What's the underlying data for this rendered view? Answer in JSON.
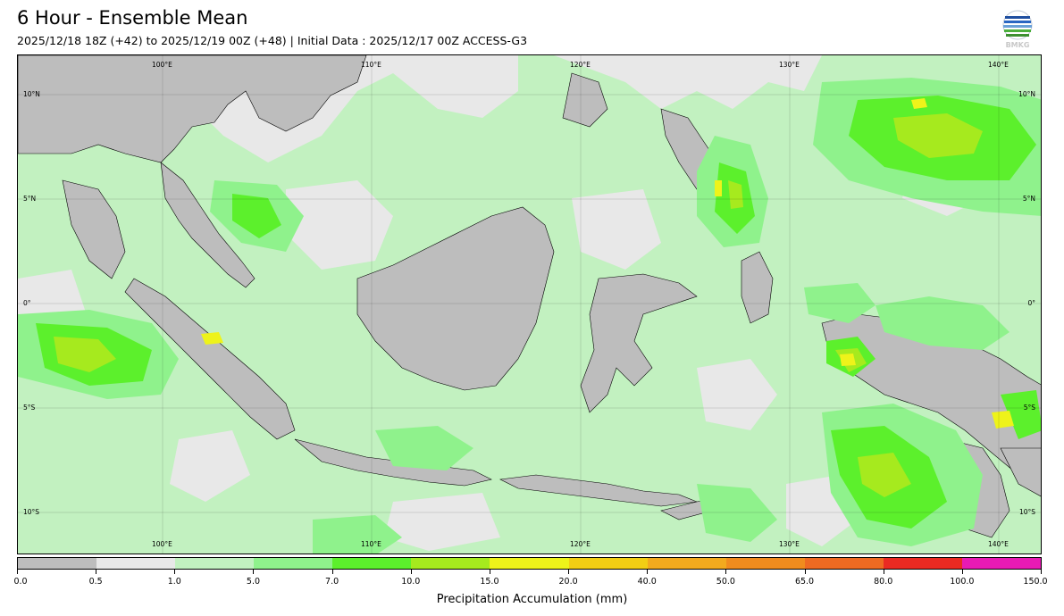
{
  "header": {
    "title": "6 Hour - Ensemble Mean",
    "subtitle": "2025/12/18 18Z (+42) to 2025/12/19 00Z (+48) | Initial Data : 2025/12/17 00Z ACCESS-G3"
  },
  "logo": {
    "icon": "bmkg-globe-logo",
    "text": "BMKG"
  },
  "map": {
    "region": "Indonesia",
    "longitude_labels": [
      "100°E",
      "110°E",
      "120°E",
      "130°E",
      "140°E"
    ],
    "latitude_labels": [
      "10°N",
      "5°N",
      "0°",
      "5°S",
      "10°S"
    ],
    "land_color": "#bdbdbd",
    "gridlines": true
  },
  "legend": {
    "title": "Precipitation Accumulation (mm)",
    "ticks": [
      "0.0",
      "0.5",
      "1.0",
      "5.0",
      "7.0",
      "10.0",
      "15.0",
      "20.0",
      "40.0",
      "50.0",
      "65.0",
      "80.0",
      "100.0",
      "150.0"
    ],
    "colors": [
      "#bdbdbd",
      "#e8e8e8",
      "#c2f1c0",
      "#8ff28c",
      "#5cf02c",
      "#a6ea1e",
      "#eef31a",
      "#f2ce14",
      "#f2aa1e",
      "#f08c1e",
      "#ee6a22",
      "#ea2a22",
      "#e81ab4"
    ]
  }
}
